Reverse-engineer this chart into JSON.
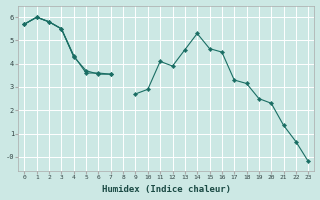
{
  "xlabel": "Humidex (Indice chaleur)",
  "background_color": "#cce8e4",
  "grid_color": "#ffffff",
  "line_color": "#1a6e64",
  "xlim": [
    -0.5,
    23.5
  ],
  "ylim": [
    -0.6,
    6.5
  ],
  "xticks": [
    0,
    1,
    2,
    3,
    4,
    5,
    6,
    7,
    8,
    9,
    10,
    11,
    12,
    13,
    14,
    15,
    16,
    17,
    18,
    19,
    20,
    21,
    22,
    23
  ],
  "yticks": [
    0,
    1,
    2,
    3,
    4,
    5,
    6
  ],
  "ytick_labels": [
    "-0",
    "1",
    "2",
    "3",
    "4",
    "5",
    "6"
  ],
  "line1_y": [
    5.7,
    6.0,
    5.8,
    5.5,
    4.3,
    3.7,
    3.55,
    3.55,
    null,
    null,
    null,
    null,
    null,
    null,
    null,
    null,
    null,
    null,
    null,
    null,
    null,
    null,
    null,
    null
  ],
  "line2_y": [
    5.7,
    6.0,
    5.8,
    5.5,
    4.3,
    null,
    null,
    null,
    null,
    null,
    null,
    null,
    null,
    null,
    null,
    null,
    null,
    null,
    null,
    null,
    null,
    null,
    null,
    -0.2
  ],
  "line3_y": [
    5.7,
    6.0,
    5.8,
    5.5,
    4.35,
    3.6,
    3.6,
    3.55,
    null,
    2.7,
    2.9,
    4.1,
    3.9,
    4.6,
    5.3,
    4.65,
    4.5,
    3.3,
    3.15,
    2.5,
    2.3,
    1.35,
    0.65,
    -0.2
  ]
}
